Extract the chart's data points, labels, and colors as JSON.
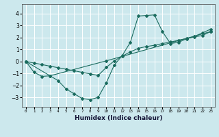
{
  "xlabel": "Humidex (Indice chaleur)",
  "bg_color": "#cce8ed",
  "grid_color": "#ffffff",
  "line_color": "#1a6b5e",
  "xlim": [
    -0.5,
    23.5
  ],
  "ylim": [
    -3.8,
    4.8
  ],
  "yticks": [
    -3,
    -2,
    -1,
    0,
    1,
    2,
    3,
    4
  ],
  "xticks": [
    0,
    1,
    2,
    3,
    4,
    5,
    6,
    7,
    8,
    9,
    10,
    11,
    12,
    13,
    14,
    15,
    16,
    17,
    18,
    19,
    20,
    21,
    22,
    23
  ],
  "line1_x": [
    0,
    1,
    2,
    3,
    4,
    5,
    6,
    7,
    8,
    9,
    10,
    11,
    12,
    13,
    14,
    15,
    16,
    17,
    18,
    19,
    20,
    21,
    22,
    23
  ],
  "line1_y": [
    0.0,
    -0.9,
    -1.25,
    -1.2,
    -1.6,
    -2.3,
    -2.7,
    -3.1,
    -3.2,
    -3.0,
    -1.8,
    -0.3,
    0.5,
    1.6,
    3.8,
    3.85,
    3.9,
    2.5,
    1.5,
    1.6,
    1.9,
    2.1,
    2.4,
    2.7
  ],
  "line2_x": [
    0,
    1,
    2,
    3,
    4,
    5,
    6,
    7,
    8,
    9,
    10,
    11,
    12,
    13,
    14,
    15,
    16,
    17,
    18,
    19,
    20,
    21,
    22,
    23
  ],
  "line2_y": [
    0.0,
    -0.13,
    -0.26,
    -0.39,
    -0.52,
    -0.65,
    -0.78,
    -0.91,
    -1.04,
    -1.17,
    -0.5,
    0.05,
    0.45,
    0.8,
    1.1,
    1.25,
    1.35,
    1.5,
    1.62,
    1.78,
    1.92,
    2.05,
    2.18,
    2.5
  ],
  "line3_x": [
    0,
    3,
    10,
    23
  ],
  "line3_y": [
    0.0,
    -1.2,
    0.05,
    2.5
  ]
}
